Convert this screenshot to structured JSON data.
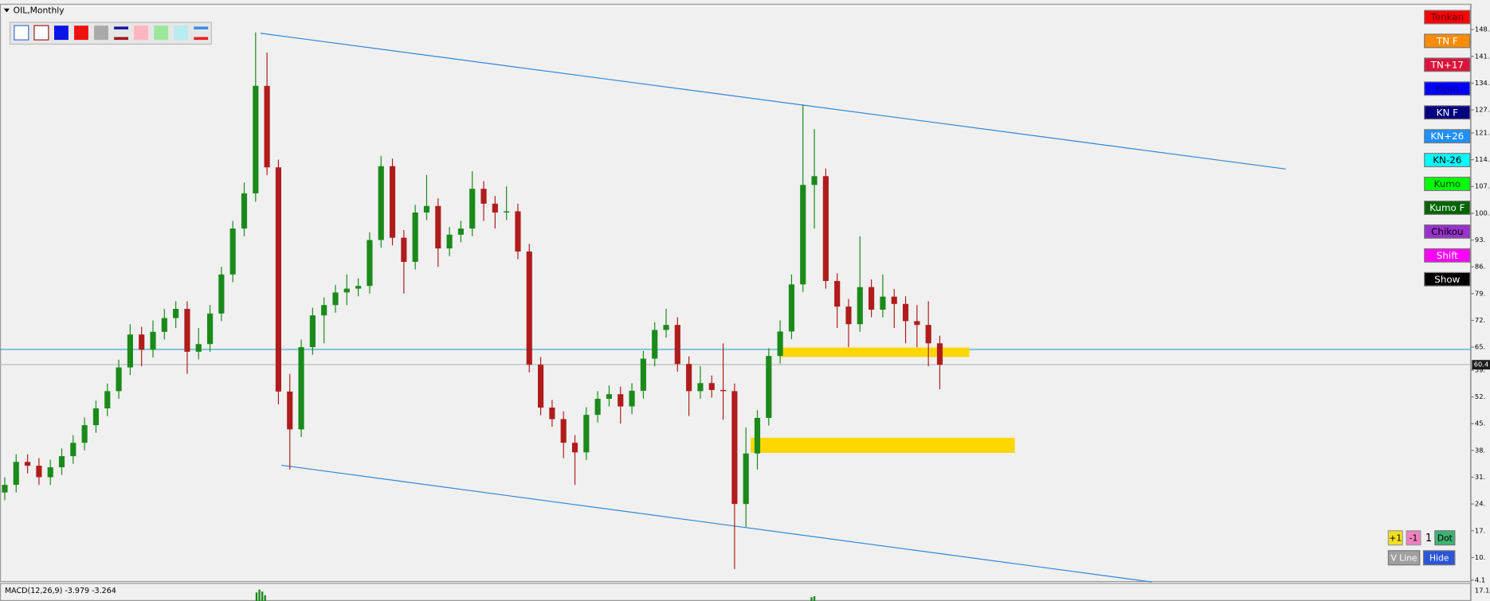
{
  "window": {
    "title": "OIL,Monthly",
    "indicator": "MACD(12,26,9) -3.979 -3.264",
    "indicator_tick": "17.1",
    "buttons": [
      "Tenkan",
      "TN F",
      "TN+17",
      "Kijun",
      "KN F",
      "KN+26",
      "KN-26",
      "Kumo",
      "Kumo F",
      "Chikou",
      "Shift",
      "Show"
    ],
    "controls": [
      "+1",
      "-1",
      "1",
      "Dot",
      "V Line",
      "Hide"
    ]
  },
  "chart_data": {
    "type": "candlestick",
    "up_color": "#1a8a1a",
    "down_color": "#b01c1c",
    "ylim": [
      4.1,
      148.3
    ],
    "yticks": [
      {
        "value": 148,
        "label": "148."
      },
      {
        "value": 141,
        "label": "141."
      },
      {
        "value": 134,
        "label": "134."
      },
      {
        "value": 127,
        "label": "127."
      },
      {
        "value": 121,
        "label": "121."
      },
      {
        "value": 114,
        "label": "114."
      },
      {
        "value": 107,
        "label": "107."
      },
      {
        "value": 100,
        "label": "100."
      },
      {
        "value": 93,
        "label": "93."
      },
      {
        "value": 86,
        "label": "86."
      },
      {
        "value": 79,
        "label": "79."
      },
      {
        "value": 72,
        "label": "72."
      },
      {
        "value": 65,
        "label": "65."
      },
      {
        "value": 59,
        "label": "59."
      },
      {
        "value": 52,
        "label": "52."
      },
      {
        "value": 45,
        "label": "45."
      },
      {
        "value": 38,
        "label": "38."
      },
      {
        "value": 31,
        "label": "31."
      },
      {
        "value": 24,
        "label": "24."
      },
      {
        "value": 17,
        "label": "17."
      },
      {
        "value": 10,
        "label": "10."
      },
      4.1
    ],
    "last_price": 60.4,
    "open": [
      27,
      29,
      35,
      34,
      31,
      33.6,
      36.5,
      40,
      44.6,
      49,
      53.5,
      59.7,
      68.3,
      64.3,
      69,
      72.6,
      75,
      63.8,
      65.8,
      73.8,
      84,
      96,
      105.2,
      133.3,
      112,
      53.4,
      43.5,
      65,
      73.3,
      76,
      79.3,
      80.3,
      81,
      93,
      112.3,
      93.6,
      87.3,
      100.2,
      101.9,
      90.8,
      94.4,
      96,
      106.4,
      102.5,
      100.2,
      100.5,
      90,
      60.4,
      49.2,
      46.2,
      40,
      37.5,
      47.3,
      51.5,
      52.7,
      49.5,
      53.6,
      62,
      69.5,
      70.8,
      60.6,
      53.5,
      55.6,
      53.8,
      53.5,
      24,
      37.2,
      46.5,
      62.7,
      69.1,
      81.4,
      107.4,
      109.7,
      82.3,
      75.6,
      71,
      80.7,
      74.8,
      78.2,
      76.3,
      71.8,
      70.8,
      66
    ],
    "high": [
      31,
      37,
      37,
      36,
      35.6,
      38.5,
      42,
      46.6,
      51,
      55.5,
      61.7,
      71,
      70.3,
      72,
      75,
      77,
      77,
      70,
      76,
      86,
      98,
      108,
      147.3,
      142,
      114,
      58,
      67,
      75.3,
      78,
      81.3,
      84,
      83,
      95,
      115,
      114.3,
      95.6,
      102.2,
      110,
      103.9,
      96.4,
      98,
      111,
      108.4,
      104.5,
      107,
      102.5,
      92,
      62.4,
      51.2,
      48.2,
      42,
      49.3,
      53.5,
      55,
      54.7,
      55.6,
      64,
      71.5,
      75,
      72.8,
      62.6,
      60,
      57.6,
      66,
      55.5,
      44,
      48.5,
      64.7,
      72,
      84,
      128.4,
      122,
      111.7,
      84.3,
      77.6,
      94,
      82.7,
      84,
      80.2,
      78.3,
      76,
      77,
      68
    ],
    "low": [
      25,
      27,
      32,
      29,
      29,
      31.6,
      34.5,
      38,
      42.6,
      47,
      51.5,
      57.7,
      60,
      62.3,
      67,
      70,
      58,
      61.8,
      63.8,
      71.8,
      82,
      94,
      103,
      110,
      50,
      33,
      41.5,
      63,
      66,
      74,
      76,
      78.3,
      79,
      91,
      91.6,
      79,
      85.3,
      98.2,
      86,
      88.8,
      92.4,
      94,
      98,
      96,
      98.2,
      88,
      58.4,
      47.2,
      44.2,
      36,
      29,
      35.5,
      45.3,
      49.5,
      45,
      47.5,
      51.6,
      60,
      67.5,
      58.6,
      47,
      51.5,
      51.8,
      46,
      7,
      18,
      33,
      44.5,
      60.7,
      67.1,
      79.4,
      96,
      80.3,
      70,
      65,
      69,
      72.8,
      72.8,
      70,
      66,
      65,
      60,
      54
    ],
    "close": [
      29,
      35,
      34,
      31,
      33.6,
      36.5,
      40,
      44.6,
      49,
      53.5,
      59.7,
      68.3,
      64.3,
      69,
      72.6,
      75,
      63.8,
      65.8,
      73.8,
      84,
      96,
      105.2,
      133.3,
      112,
      53.4,
      43.5,
      65,
      73.3,
      76,
      79.3,
      80.3,
      81,
      93,
      112.3,
      93.6,
      87.3,
      100.2,
      101.9,
      90.8,
      94.4,
      96,
      106.4,
      102.5,
      100.2,
      100.5,
      90,
      60.4,
      49.2,
      46.2,
      40,
      37.5,
      47.3,
      51.5,
      52.7,
      49.5,
      53.6,
      62,
      69.5,
      70.8,
      60.6,
      53.5,
      55.6,
      53.8,
      53.5,
      24,
      37.2,
      46.5,
      62.7,
      69.1,
      81.4,
      107.4,
      109.7,
      82.3,
      75.6,
      71,
      80.7,
      74.8,
      78.2,
      76.3,
      71.8,
      70.8,
      66,
      60.4
    ]
  }
}
